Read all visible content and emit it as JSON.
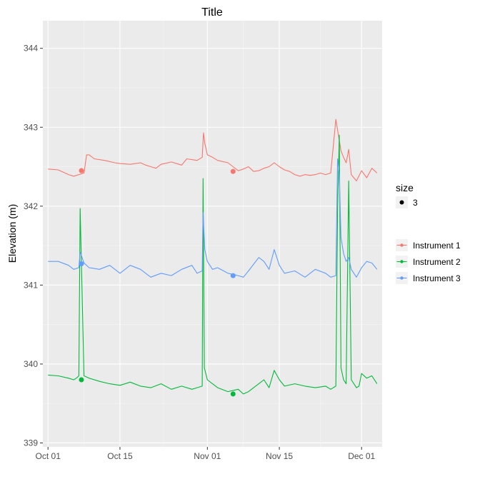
{
  "chart_data": {
    "type": "line",
    "title": "Title",
    "xlabel": "",
    "ylabel": "Elevation (m)",
    "ylim": [
      338.95,
      344.35
    ],
    "xlim": [
      "2015-09-30",
      "2015-12-05"
    ],
    "x_ticks": [
      {
        "date": "2015-10-01",
        "label": "Oct 01"
      },
      {
        "date": "2015-10-15",
        "label": "Oct 15"
      },
      {
        "date": "2015-11-01",
        "label": "Nov 01"
      },
      {
        "date": "2015-11-15",
        "label": "Nov 15"
      },
      {
        "date": "2015-12-01",
        "label": "Dec 01"
      }
    ],
    "y_ticks": [
      339,
      340,
      341,
      342,
      343,
      344
    ],
    "grid": true,
    "legend_position": "right",
    "size_legend": {
      "title": "size",
      "label": "3"
    },
    "series": [
      {
        "name": "Instrument 1",
        "color": "#F8766D",
        "x": [
          "2015-10-01",
          "2015-10-03",
          "2015-10-05",
          "2015-10-06",
          "2015-10-07",
          "2015-10-08",
          "2015-10-08T12",
          "2015-10-09",
          "2015-10-10",
          "2015-10-12",
          "2015-10-14",
          "2015-10-15",
          "2015-10-17",
          "2015-10-19",
          "2015-10-20",
          "2015-10-21",
          "2015-10-22",
          "2015-10-23",
          "2015-10-25",
          "2015-10-27",
          "2015-10-28",
          "2015-10-30",
          "2015-10-31",
          "2015-10-31T06",
          "2015-10-31T12",
          "2015-11-01",
          "2015-11-02",
          "2015-11-03",
          "2015-11-05",
          "2015-11-06",
          "2015-11-07",
          "2015-11-08",
          "2015-11-09",
          "2015-11-10",
          "2015-11-11",
          "2015-11-12",
          "2015-11-13",
          "2015-11-14",
          "2015-11-15",
          "2015-11-16",
          "2015-11-17",
          "2015-11-18",
          "2015-11-19",
          "2015-11-20",
          "2015-11-21",
          "2015-11-22",
          "2015-11-23",
          "2015-11-24",
          "2015-11-25",
          "2015-11-26",
          "2015-11-27",
          "2015-11-27T12",
          "2015-11-28",
          "2015-11-28T12",
          "2015-11-29",
          "2015-11-30",
          "2015-12-01",
          "2015-12-02",
          "2015-12-03",
          "2015-12-04"
        ],
        "y": [
          342.47,
          342.46,
          342.4,
          342.38,
          342.4,
          342.42,
          342.65,
          342.65,
          342.6,
          342.58,
          342.55,
          342.54,
          342.53,
          342.55,
          342.52,
          342.5,
          342.48,
          342.53,
          342.56,
          342.52,
          342.6,
          342.58,
          342.62,
          342.93,
          342.8,
          342.65,
          342.62,
          342.58,
          342.55,
          342.5,
          342.45,
          342.47,
          342.5,
          342.44,
          342.45,
          342.48,
          342.5,
          342.55,
          342.5,
          342.46,
          342.44,
          342.4,
          342.38,
          342.4,
          342.39,
          342.4,
          342.42,
          342.4,
          342.42,
          343.1,
          342.7,
          342.62,
          342.55,
          342.72,
          342.4,
          342.32,
          342.45,
          342.36,
          342.48,
          342.42
        ]
      },
      {
        "name": "Instrument 2",
        "color": "#00BA38",
        "x": [
          "2015-10-01",
          "2015-10-03",
          "2015-10-05",
          "2015-10-06",
          "2015-10-06T12",
          "2015-10-07",
          "2015-10-07T06",
          "2015-10-08",
          "2015-10-09",
          "2015-10-11",
          "2015-10-13",
          "2015-10-15",
          "2015-10-17",
          "2015-10-19",
          "2015-10-21",
          "2015-10-23",
          "2015-10-25",
          "2015-10-27",
          "2015-10-29",
          "2015-10-30",
          "2015-10-31",
          "2015-10-31T04",
          "2015-10-31T10",
          "2015-11-01",
          "2015-11-02",
          "2015-11-03",
          "2015-11-05",
          "2015-11-07",
          "2015-11-08",
          "2015-11-09",
          "2015-11-11",
          "2015-11-12",
          "2015-11-13",
          "2015-11-14",
          "2015-11-15",
          "2015-11-16",
          "2015-11-18",
          "2015-11-20",
          "2015-11-22",
          "2015-11-24",
          "2015-11-25",
          "2015-11-26",
          "2015-11-26T08",
          "2015-11-26T16",
          "2015-11-27",
          "2015-11-27T12",
          "2015-11-28",
          "2015-11-28T12",
          "2015-11-29",
          "2015-11-30",
          "2015-11-30T12",
          "2015-12-01",
          "2015-12-02",
          "2015-12-03",
          "2015-12-04"
        ],
        "y": [
          339.86,
          339.85,
          339.82,
          339.8,
          339.82,
          339.85,
          341.97,
          339.85,
          339.82,
          339.78,
          339.75,
          339.73,
          339.77,
          339.72,
          339.7,
          339.75,
          339.68,
          339.72,
          339.68,
          339.7,
          339.72,
          342.35,
          339.95,
          339.8,
          339.75,
          339.7,
          339.65,
          339.68,
          339.62,
          339.65,
          339.75,
          339.8,
          339.7,
          339.92,
          339.8,
          339.72,
          339.75,
          339.72,
          339.7,
          339.72,
          339.68,
          339.72,
          341.94,
          342.9,
          339.95,
          339.8,
          339.75,
          342.32,
          339.8,
          339.7,
          339.72,
          339.88,
          339.82,
          339.85,
          339.75
        ]
      },
      {
        "name": "Instrument 3",
        "color": "#619CFF",
        "x": [
          "2015-10-01",
          "2015-10-03",
          "2015-10-05",
          "2015-10-06",
          "2015-10-07",
          "2015-10-07T06",
          "2015-10-08",
          "2015-10-09",
          "2015-10-11",
          "2015-10-13",
          "2015-10-15",
          "2015-10-17",
          "2015-10-19",
          "2015-10-21",
          "2015-10-23",
          "2015-10-25",
          "2015-10-27",
          "2015-10-29",
          "2015-10-30",
          "2015-10-31",
          "2015-10-31T04",
          "2015-10-31T12",
          "2015-11-01",
          "2015-11-02",
          "2015-11-03",
          "2015-11-05",
          "2015-11-07",
          "2015-11-08",
          "2015-11-09",
          "2015-11-11",
          "2015-11-12",
          "2015-11-13",
          "2015-11-14",
          "2015-11-15",
          "2015-11-16",
          "2015-11-18",
          "2015-11-20",
          "2015-11-22",
          "2015-11-24",
          "2015-11-25",
          "2015-11-26",
          "2015-11-26T08",
          "2015-11-26T16",
          "2015-11-27",
          "2015-11-27T12",
          "2015-11-28",
          "2015-11-28T12",
          "2015-11-29",
          "2015-11-30",
          "2015-12-01",
          "2015-12-02",
          "2015-12-03",
          "2015-12-04"
        ],
        "y": [
          341.3,
          341.3,
          341.25,
          341.2,
          341.22,
          341.42,
          341.28,
          341.22,
          341.2,
          341.25,
          341.15,
          341.25,
          341.2,
          341.1,
          341.15,
          341.12,
          341.2,
          341.25,
          341.15,
          341.18,
          341.92,
          341.45,
          341.3,
          341.2,
          341.22,
          341.15,
          341.12,
          341.1,
          341.18,
          341.35,
          341.3,
          341.2,
          341.45,
          341.25,
          341.15,
          341.18,
          341.1,
          341.2,
          341.15,
          341.1,
          341.12,
          342.6,
          342.4,
          341.6,
          341.4,
          341.3,
          341.35,
          341.2,
          341.1,
          341.22,
          341.3,
          341.28,
          341.2
        ]
      }
    ],
    "points": [
      {
        "series": "Instrument 1",
        "x": "2015-10-07T12",
        "y": 342.45
      },
      {
        "series": "Instrument 1",
        "x": "2015-11-06",
        "y": 342.44
      },
      {
        "series": "Instrument 2",
        "x": "2015-10-07T12",
        "y": 339.8
      },
      {
        "series": "Instrument 2",
        "x": "2015-11-06",
        "y": 339.62
      },
      {
        "series": "Instrument 3",
        "x": "2015-10-07T12",
        "y": 341.27
      },
      {
        "series": "Instrument 3",
        "x": "2015-11-06",
        "y": 341.12
      }
    ]
  }
}
